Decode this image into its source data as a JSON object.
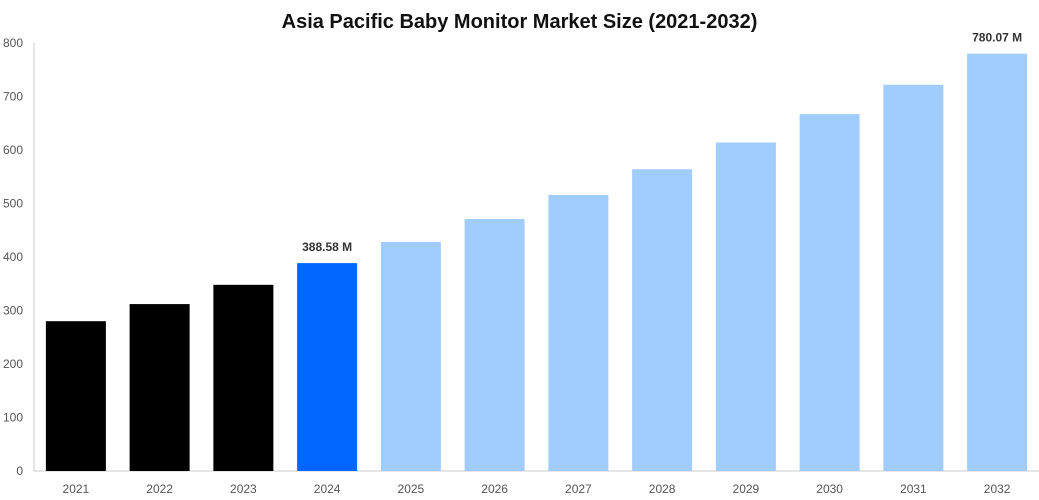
{
  "chart_data": {
    "type": "bar",
    "title": "Asia Pacific Baby Monitor Market Size (2021-2032)",
    "xlabel": "",
    "ylabel": "",
    "categories": [
      "2021",
      "2022",
      "2023",
      "2024",
      "2025",
      "2026",
      "2027",
      "2028",
      "2029",
      "2030",
      "2031",
      "2032"
    ],
    "values": [
      280,
      312,
      348,
      388.58,
      428,
      471,
      516,
      564,
      614,
      667,
      722,
      780.07
    ],
    "colors": [
      "#000000",
      "#000000",
      "#000000",
      "#0066ff",
      "#a1cdfd",
      "#a1cdfd",
      "#a1cdfd",
      "#a1cdfd",
      "#a1cdfd",
      "#a1cdfd",
      "#a1cdfd",
      "#a1cdfd"
    ],
    "data_labels": [
      {
        "category": "2024",
        "text": "388.58 M"
      },
      {
        "category": "2032",
        "text": "780.07 M"
      }
    ],
    "ylim": [
      0,
      800
    ],
    "yticks": [
      "0",
      "100",
      "200",
      "300",
      "400",
      "500",
      "600",
      "700",
      "800"
    ],
    "grid": false,
    "legend": "none"
  }
}
